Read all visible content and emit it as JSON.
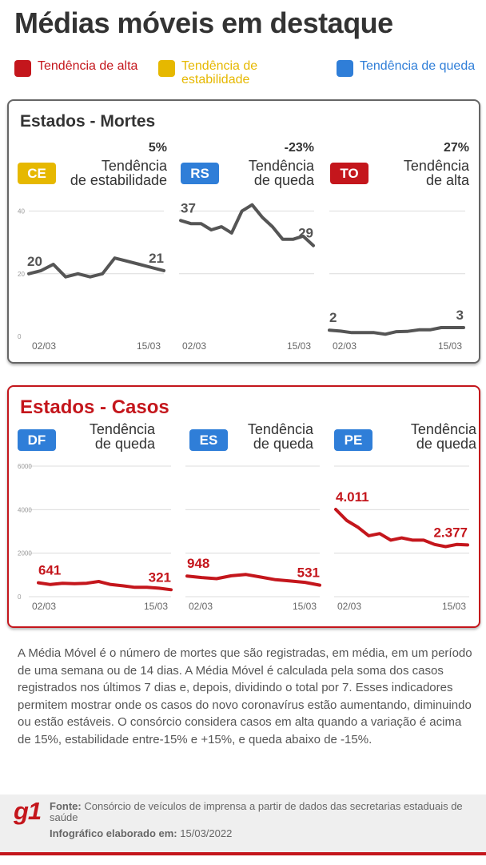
{
  "title": "Médias móveis em destaque",
  "legend": [
    {
      "label": "Tendência de alta",
      "color": "#c4161c"
    },
    {
      "label": "Tendência de estabilidade",
      "color": "#e6b800"
    },
    {
      "label": "Tendência de queda",
      "color": "#2f7ed8"
    }
  ],
  "deaths_panel": {
    "title": "Estados - Mortes"
  },
  "cases_panel": {
    "title": "Estados - Casos"
  },
  "colors": {
    "stable": "#e6b800",
    "down": "#2f7ed8",
    "up": "#c4161c",
    "deaths_line": "#555555",
    "cases_line": "#c4161c"
  },
  "chart_data": [
    {
      "type": "line",
      "panel": "Estados - Mortes",
      "state": "CE",
      "change": "5%",
      "trend": "Tendência de estabilidade",
      "trend_color": "stable",
      "x_ticks": [
        "02/03",
        "15/03"
      ],
      "y_ticks": [
        "0",
        "20",
        "40"
      ],
      "ylim": [
        0,
        45
      ],
      "values": [
        20,
        21,
        23,
        19,
        20,
        19,
        20,
        25,
        24,
        23,
        22,
        21
      ],
      "start_label": "20",
      "end_label": "21"
    },
    {
      "type": "line",
      "panel": "Estados - Mortes",
      "state": "RS",
      "change": "-23%",
      "trend": "Tendência de queda",
      "trend_color": "down",
      "x_ticks": [
        "02/03",
        "15/03"
      ],
      "ylim": [
        0,
        45
      ],
      "values": [
        37,
        36,
        36,
        34,
        35,
        33,
        40,
        42,
        38,
        35,
        31,
        31,
        32,
        29
      ],
      "start_label": "37",
      "end_label": "29"
    },
    {
      "type": "line",
      "panel": "Estados - Mortes",
      "state": "TO",
      "change": "27%",
      "trend": "Tendência de alta",
      "trend_color": "up",
      "x_ticks": [
        "02/03",
        "15/03"
      ],
      "ylim": [
        0,
        45
      ],
      "values": [
        2,
        1.7,
        1.2,
        1.2,
        1.2,
        0.7,
        1.5,
        1.6,
        2.1,
        2.1,
        2.8,
        2.8,
        2.8
      ],
      "start_label": "2",
      "end_label": "3"
    },
    {
      "type": "line",
      "panel": "Estados - Casos",
      "state": "DF",
      "trend": "Tendência de queda",
      "trend_color": "down",
      "x_ticks": [
        "02/03",
        "15/03"
      ],
      "y_ticks": [
        "0",
        "2000",
        "4000",
        "6000"
      ],
      "ylim": [
        0,
        6000
      ],
      "values": [
        641,
        560,
        620,
        600,
        620,
        700,
        560,
        500,
        430,
        430,
        390,
        321
      ],
      "start_label": "641",
      "end_label": "321"
    },
    {
      "type": "line",
      "panel": "Estados - Casos",
      "state": "ES",
      "trend": "Tendência de queda",
      "trend_color": "down",
      "x_ticks": [
        "02/03",
        "15/03"
      ],
      "ylim": [
        0,
        6000
      ],
      "values": [
        948,
        880,
        830,
        960,
        1020,
        900,
        780,
        720,
        660,
        531
      ],
      "start_label": "948",
      "end_label": "531"
    },
    {
      "type": "line",
      "panel": "Estados - Casos",
      "state": "PE",
      "trend": "Tendência de queda",
      "trend_color": "down",
      "x_ticks": [
        "02/03",
        "15/03"
      ],
      "ylim": [
        0,
        6000
      ],
      "values": [
        4011,
        3500,
        3200,
        2800,
        2900,
        2600,
        2700,
        2600,
        2600,
        2400,
        2300,
        2400,
        2377
      ],
      "start_label": "4.011",
      "end_label": "2.377"
    }
  ],
  "description": "A Média Móvel é o número de mortes que são registradas, em média, em um período de uma semana ou de 14 dias. A Média Móvel é calculada pela soma dos casos registrados nos últimos 7 dias e, depois, dividindo o total por 7. Esses indicadores permitem mostrar onde os casos do novo coronavírus estão aumentando, diminuindo ou estão estáveis. O consórcio considera casos em alta quando a variação é acima de 15%, estabilidade entre-15% e +15%, e queda abaixo de -15%.",
  "footer": {
    "logo": "g1",
    "source_label": "Fonte:",
    "source_text": "Consórcio de veículos de imprensa a partir de dados das secretarias estaduais de saúde",
    "date_label": "Infográfico elaborado em:",
    "date_text": "15/03/2022"
  }
}
